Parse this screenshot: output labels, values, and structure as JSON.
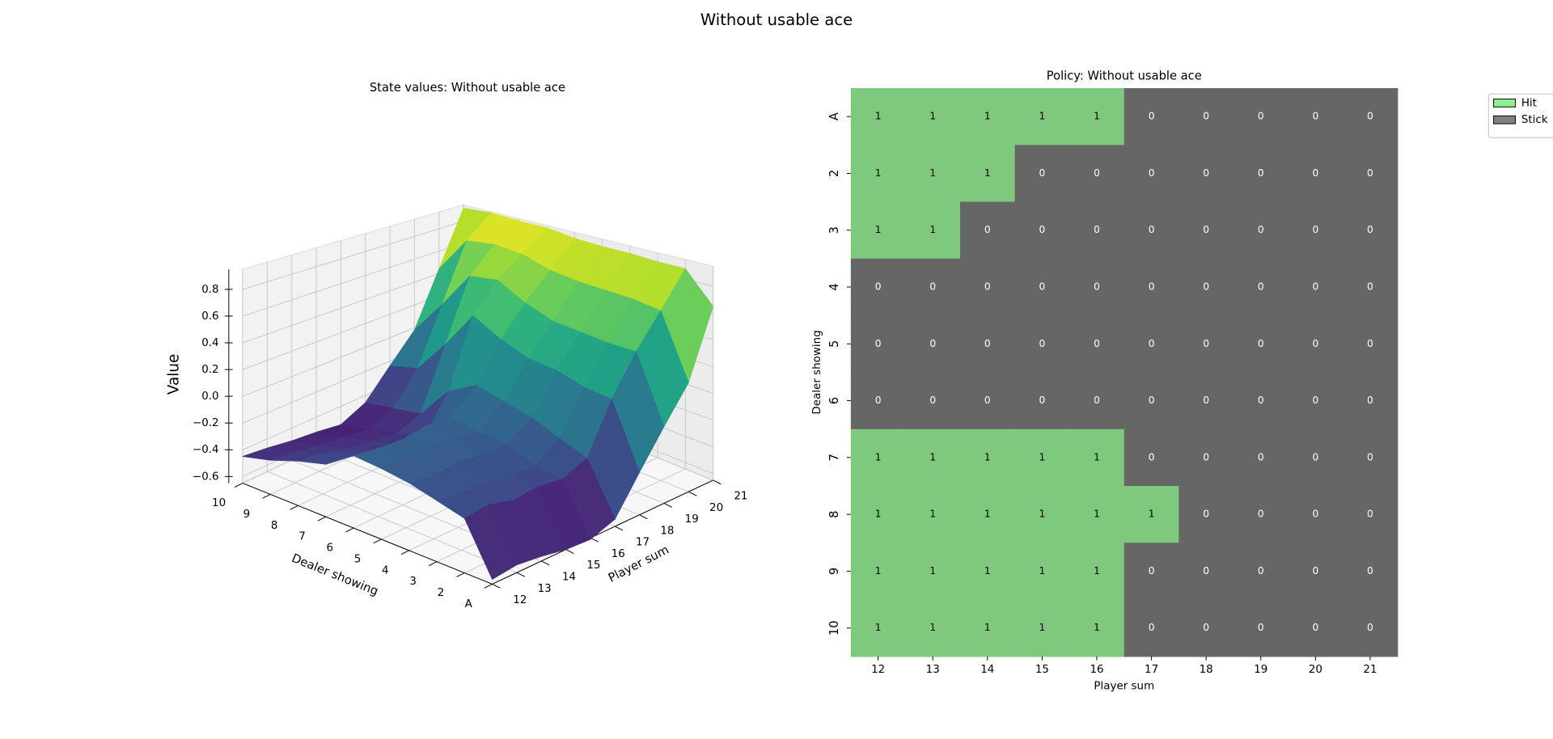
{
  "title": "Without usable ace",
  "chart_data": [
    {
      "type": "surface",
      "title": "State values: Without usable ace",
      "xlabel": "Player sum",
      "ylabel": "Dealer showing",
      "zlabel": "Value",
      "x": [
        12,
        13,
        14,
        15,
        16,
        17,
        18,
        19,
        20,
        21
      ],
      "xlim": [
        12,
        21
      ],
      "y": [
        "A",
        "2",
        "3",
        "4",
        "5",
        "6",
        "7",
        "8",
        "9",
        "10"
      ],
      "z": [
        [
          -0.62,
          -0.6,
          -0.62,
          -0.65,
          -0.66,
          -0.6,
          -0.35,
          -0.1,
          0.15,
          0.65
        ],
        [
          -0.3,
          -0.28,
          -0.32,
          -0.3,
          -0.32,
          -0.25,
          0.1,
          0.38,
          0.62,
          0.88
        ],
        [
          -0.25,
          -0.27,
          -0.28,
          -0.3,
          -0.3,
          -0.18,
          0.12,
          0.38,
          0.65,
          0.88
        ],
        [
          -0.2,
          -0.22,
          -0.2,
          -0.22,
          -0.22,
          -0.1,
          0.18,
          0.4,
          0.66,
          0.89
        ],
        [
          -0.17,
          -0.18,
          -0.16,
          -0.18,
          -0.2,
          -0.05,
          0.2,
          0.42,
          0.67,
          0.89
        ],
        [
          -0.15,
          -0.17,
          -0.18,
          -0.15,
          -0.17,
          0.0,
          0.28,
          0.5,
          0.7,
          0.9
        ],
        [
          -0.28,
          -0.3,
          -0.35,
          -0.38,
          -0.4,
          -0.12,
          0.4,
          0.62,
          0.77,
          0.93
        ],
        [
          -0.33,
          -0.35,
          -0.4,
          -0.42,
          -0.45,
          -0.38,
          0.1,
          0.59,
          0.79,
          0.93
        ],
        [
          -0.4,
          -0.42,
          -0.45,
          -0.47,
          -0.5,
          -0.42,
          -0.18,
          0.28,
          0.76,
          0.94
        ],
        [
          -0.45,
          -0.47,
          -0.5,
          -0.52,
          -0.55,
          -0.46,
          -0.24,
          -0.02,
          0.44,
          0.92
        ]
      ],
      "zlim": [
        -0.65,
        0.95
      ],
      "zticks": [
        {
          "value": -0.6,
          "label": "−0.6"
        },
        {
          "value": -0.4,
          "label": "−0.4"
        },
        {
          "value": -0.2,
          "label": "−0.2"
        },
        {
          "value": 0,
          "label": "0.0"
        },
        0.2,
        0.4,
        0.6,
        0.8
      ],
      "colormap": "viridis",
      "grid": true
    },
    {
      "type": "heatmap",
      "title": "Policy: Without usable ace",
      "xlabel": "Player sum",
      "ylabel": "Dealer showing",
      "x": [
        12,
        13,
        14,
        15,
        16,
        17,
        18,
        19,
        20,
        21
      ],
      "y": [
        "A",
        "2",
        "3",
        "4",
        "5",
        "6",
        "7",
        "8",
        "9",
        "10"
      ],
      "values": [
        [
          1,
          1,
          1,
          1,
          1,
          0,
          0,
          0,
          0,
          0
        ],
        [
          1,
          1,
          1,
          0,
          0,
          0,
          0,
          0,
          0,
          0
        ],
        [
          1,
          1,
          0,
          0,
          0,
          0,
          0,
          0,
          0,
          0
        ],
        [
          0,
          0,
          0,
          0,
          0,
          0,
          0,
          0,
          0,
          0
        ],
        [
          0,
          0,
          0,
          0,
          0,
          0,
          0,
          0,
          0,
          0
        ],
        [
          0,
          0,
          0,
          0,
          0,
          0,
          0,
          0,
          0,
          0
        ],
        [
          1,
          1,
          1,
          1,
          1,
          0,
          0,
          0,
          0,
          0
        ],
        [
          1,
          1,
          1,
          1,
          1,
          1,
          0,
          0,
          0,
          0
        ],
        [
          1,
          1,
          1,
          1,
          1,
          0,
          0,
          0,
          0,
          0
        ],
        [
          1,
          1,
          1,
          1,
          1,
          0,
          0,
          0,
          0,
          0
        ]
      ],
      "colors": [
        "#666666",
        "#7fc97f"
      ],
      "legend": [
        {
          "name": "Hit",
          "color": "#90ee90"
        },
        {
          "name": "Stick",
          "color": "#808080"
        }
      ],
      "legend_position": "upper right"
    }
  ]
}
